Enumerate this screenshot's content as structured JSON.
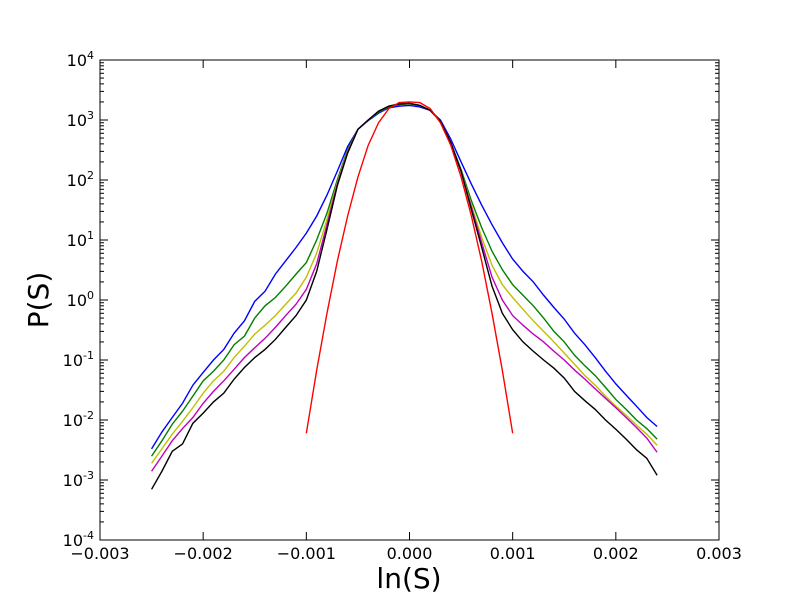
{
  "chart_data": {
    "type": "line",
    "title": "",
    "xlabel": "ln(S)",
    "ylabel": "P(S)",
    "xlim": [
      -0.003,
      0.003
    ],
    "ylim": [
      0.0001,
      10000
    ],
    "yscale": "log",
    "grid": false,
    "legend": "none",
    "x_ticks": [
      {
        "value": -0.003,
        "label": "−0.003"
      },
      {
        "value": -0.002,
        "label": "−0.002"
      },
      {
        "value": -0.001,
        "label": "−0.001"
      },
      {
        "value": 0.0,
        "label": "0.000"
      },
      {
        "value": 0.001,
        "label": "0.001"
      },
      {
        "value": 0.002,
        "label": "0.002"
      },
      {
        "value": 0.003,
        "label": "0.003"
      }
    ],
    "y_ticks": [
      {
        "value": 0.0001,
        "base": "10",
        "exp": "-4"
      },
      {
        "value": 0.001,
        "base": "10",
        "exp": "-3"
      },
      {
        "value": 0.01,
        "base": "10",
        "exp": "-2"
      },
      {
        "value": 0.1,
        "base": "10",
        "exp": "-1"
      },
      {
        "value": 1,
        "base": "10",
        "exp": "0"
      },
      {
        "value": 10,
        "base": "10",
        "exp": "1"
      },
      {
        "value": 100,
        "base": "10",
        "exp": "2"
      },
      {
        "value": 1000,
        "base": "10",
        "exp": "3"
      },
      {
        "value": 10000,
        "base": "10",
        "exp": "4"
      }
    ],
    "series": [
      {
        "color": "#0000ff",
        "x": [
          -0.0025,
          -0.0024,
          -0.0023,
          -0.0022,
          -0.0021,
          -0.002,
          -0.0019,
          -0.0018,
          -0.0017,
          -0.0016,
          -0.0015,
          -0.0014,
          -0.0013,
          -0.0012,
          -0.0011,
          -0.001,
          -0.0009,
          -0.0008,
          -0.0007,
          -0.0006,
          -0.0005,
          -0.0004,
          -0.0003,
          -0.0002,
          -0.0001,
          0.0,
          0.0001,
          0.0002,
          0.0003,
          0.0004,
          0.0005,
          0.0006,
          0.0007,
          0.0008,
          0.0009,
          0.001,
          0.0011,
          0.0012,
          0.0013,
          0.0014,
          0.0015,
          0.0016,
          0.0017,
          0.0018,
          0.0019,
          0.002,
          0.0021,
          0.0022,
          0.0023,
          0.0024
        ],
        "y": [
          0.0033,
          0.0063,
          0.011,
          0.019,
          0.038,
          0.062,
          0.1,
          0.15,
          0.28,
          0.45,
          0.95,
          1.4,
          2.7,
          4.5,
          7.5,
          13,
          25,
          56,
          140,
          360,
          700,
          980,
          1300,
          1600,
          1700,
          1750,
          1650,
          1450,
          1000,
          480,
          200,
          85,
          38,
          18,
          9,
          4.8,
          3.0,
          2.0,
          1.2,
          0.75,
          0.48,
          0.28,
          0.18,
          0.11,
          0.065,
          0.04,
          0.026,
          0.017,
          0.011,
          0.0078
        ]
      },
      {
        "color": "#008000",
        "x": [
          -0.0025,
          -0.0024,
          -0.0023,
          -0.0022,
          -0.0021,
          -0.002,
          -0.0019,
          -0.0018,
          -0.0017,
          -0.0016,
          -0.0015,
          -0.0014,
          -0.0013,
          -0.0012,
          -0.0011,
          -0.001,
          -0.0009,
          -0.0008,
          -0.0007,
          -0.0006,
          -0.0005,
          -0.0004,
          -0.0003,
          -0.0002,
          -0.0001,
          0.0,
          0.0001,
          0.0002,
          0.0003,
          0.0004,
          0.0005,
          0.0006,
          0.0007,
          0.0008,
          0.0009,
          0.001,
          0.0011,
          0.0012,
          0.0013,
          0.0014,
          0.0015,
          0.0016,
          0.0017,
          0.0018,
          0.0019,
          0.002,
          0.0021,
          0.0022,
          0.0023,
          0.0024
        ],
        "y": [
          0.0025,
          0.0045,
          0.0085,
          0.014,
          0.025,
          0.045,
          0.065,
          0.1,
          0.18,
          0.25,
          0.5,
          0.8,
          1.1,
          1.7,
          2.7,
          4.2,
          10,
          28,
          100,
          320,
          700,
          1000,
          1350,
          1650,
          1800,
          1850,
          1750,
          1450,
          950,
          420,
          150,
          45,
          16,
          6.5,
          3.2,
          1.8,
          1.2,
          0.8,
          0.5,
          0.3,
          0.2,
          0.12,
          0.08,
          0.055,
          0.035,
          0.022,
          0.015,
          0.01,
          0.0072,
          0.0048
        ]
      },
      {
        "color": "#bfbf00",
        "x": [
          -0.0025,
          -0.0024,
          -0.0023,
          -0.0022,
          -0.0021,
          -0.002,
          -0.0019,
          -0.0018,
          -0.0017,
          -0.0016,
          -0.0015,
          -0.0014,
          -0.0013,
          -0.0012,
          -0.0011,
          -0.001,
          -0.0009,
          -0.0008,
          -0.0007,
          -0.0006,
          -0.0005,
          -0.0004,
          -0.0003,
          -0.0002,
          -0.0001,
          0.0,
          0.0001,
          0.0002,
          0.0003,
          0.0004,
          0.0005,
          0.0006,
          0.0007,
          0.0008,
          0.0009,
          0.001,
          0.0011,
          0.0012,
          0.0013,
          0.0014,
          0.0015,
          0.0016,
          0.0017,
          0.0018,
          0.0019,
          0.002,
          0.0021,
          0.0022,
          0.0023,
          0.0024
        ],
        "y": [
          0.0019,
          0.0033,
          0.0058,
          0.0095,
          0.016,
          0.028,
          0.045,
          0.065,
          0.11,
          0.17,
          0.27,
          0.38,
          0.55,
          0.85,
          1.3,
          2.4,
          6,
          22,
          90,
          300,
          700,
          1000,
          1400,
          1700,
          1850,
          1900,
          1750,
          1450,
          950,
          420,
          140,
          38,
          11,
          3.8,
          1.8,
          1.1,
          0.7,
          0.45,
          0.3,
          0.2,
          0.13,
          0.085,
          0.055,
          0.038,
          0.025,
          0.017,
          0.012,
          0.0082,
          0.0058,
          0.0038
        ]
      },
      {
        "color": "#bf00bf",
        "x": [
          -0.0025,
          -0.0024,
          -0.0023,
          -0.0022,
          -0.0021,
          -0.002,
          -0.0019,
          -0.0018,
          -0.0017,
          -0.0016,
          -0.0015,
          -0.0014,
          -0.0013,
          -0.0012,
          -0.0011,
          -0.001,
          -0.0009,
          -0.0008,
          -0.0007,
          -0.0006,
          -0.0005,
          -0.0004,
          -0.0003,
          -0.0002,
          -0.0001,
          0.0,
          0.0001,
          0.0002,
          0.0003,
          0.0004,
          0.0005,
          0.0006,
          0.0007,
          0.0008,
          0.0009,
          0.001,
          0.0011,
          0.0012,
          0.0013,
          0.0014,
          0.0015,
          0.0016,
          0.0017,
          0.0018,
          0.0019,
          0.002,
          0.0021,
          0.0022,
          0.0023,
          0.0024
        ],
        "y": [
          0.0014,
          0.0025,
          0.0045,
          0.0072,
          0.011,
          0.019,
          0.03,
          0.045,
          0.07,
          0.11,
          0.16,
          0.23,
          0.35,
          0.55,
          0.85,
          1.5,
          4,
          18,
          85,
          290,
          700,
          1000,
          1400,
          1700,
          1850,
          1900,
          1750,
          1450,
          950,
          420,
          140,
          35,
          9,
          2.4,
          1.0,
          0.55,
          0.38,
          0.27,
          0.2,
          0.14,
          0.1,
          0.068,
          0.048,
          0.033,
          0.023,
          0.016,
          0.011,
          0.0075,
          0.005,
          0.0029
        ]
      },
      {
        "color": "#000000",
        "x": [
          -0.0025,
          -0.0024,
          -0.0023,
          -0.0022,
          -0.0021,
          -0.002,
          -0.0019,
          -0.0018,
          -0.0017,
          -0.0016,
          -0.0015,
          -0.0014,
          -0.0013,
          -0.0012,
          -0.0011,
          -0.001,
          -0.0009,
          -0.0008,
          -0.0007,
          -0.0006,
          -0.0005,
          -0.0004,
          -0.0003,
          -0.0002,
          -0.0001,
          0.0,
          0.0001,
          0.0002,
          0.0003,
          0.0004,
          0.0005,
          0.0006,
          0.0007,
          0.0008,
          0.0009,
          0.001,
          0.0011,
          0.0012,
          0.0013,
          0.0014,
          0.0015,
          0.0016,
          0.0017,
          0.0018,
          0.0019,
          0.002,
          0.0021,
          0.0022,
          0.0023,
          0.0024
        ],
        "y": [
          0.0007,
          0.0014,
          0.003,
          0.004,
          0.0088,
          0.013,
          0.02,
          0.028,
          0.048,
          0.075,
          0.11,
          0.15,
          0.22,
          0.35,
          0.55,
          1.0,
          3,
          15,
          80,
          280,
          700,
          1000,
          1400,
          1700,
          1850,
          1900,
          1750,
          1450,
          950,
          420,
          140,
          32,
          7.5,
          1.7,
          0.6,
          0.32,
          0.2,
          0.14,
          0.1,
          0.073,
          0.05,
          0.03,
          0.021,
          0.015,
          0.01,
          0.007,
          0.0048,
          0.0032,
          0.0023,
          0.0012
        ]
      },
      {
        "color": "#ff0000",
        "x": [
          -0.001,
          -0.0009,
          -0.0008,
          -0.0007,
          -0.0006,
          -0.0005,
          -0.0004,
          -0.0003,
          -0.0002,
          -0.0001,
          0.0,
          0.0001,
          0.0002,
          0.0003,
          0.0004,
          0.0005,
          0.0006,
          0.0007,
          0.0008,
          0.0009,
          0.001
        ],
        "y": [
          0.006,
          0.067,
          0.6,
          4.4,
          25,
          112,
          380,
          900,
          1550,
          1950,
          2000,
          1950,
          1550,
          900,
          380,
          112,
          25,
          4.4,
          0.6,
          0.067,
          0.006
        ]
      }
    ]
  }
}
